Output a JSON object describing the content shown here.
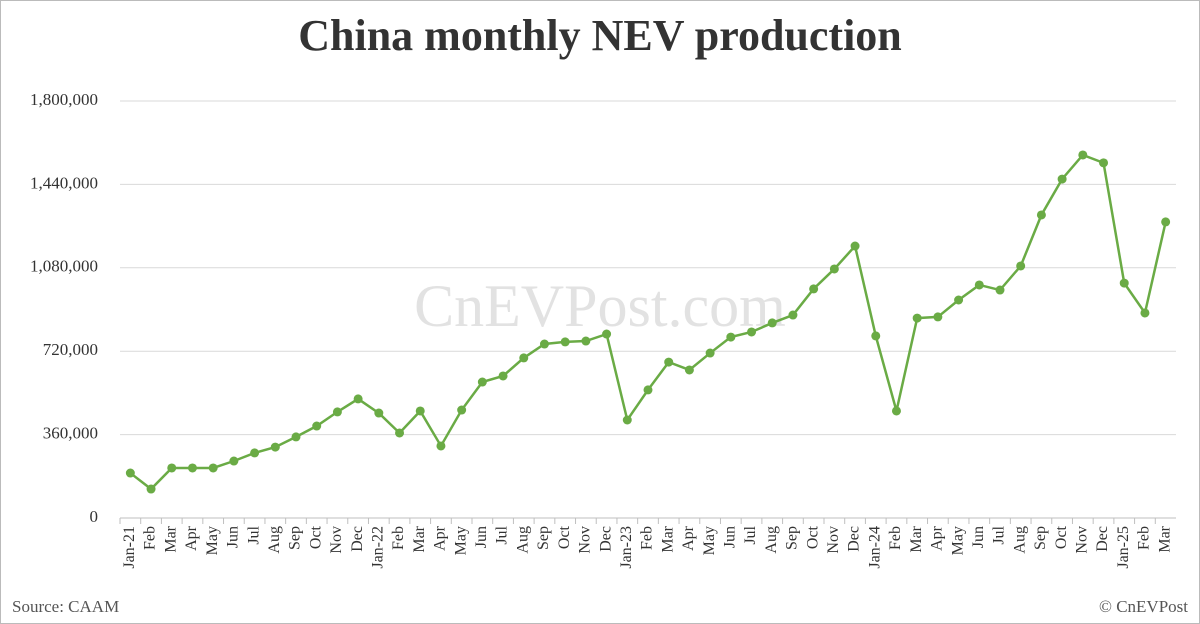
{
  "chart_data": {
    "type": "line",
    "title": "China monthly NEV production",
    "watermark": "CnEVPost.com",
    "source": "Source: CAAM",
    "credit": "© CnEVPost",
    "categories": [
      "Jan-21",
      "Feb",
      "Mar",
      "Apr",
      "May",
      "Jun",
      "Jul",
      "Aug",
      "Sep",
      "Oct",
      "Nov",
      "Dec",
      "Jan-22",
      "Feb",
      "Mar",
      "Apr",
      "May",
      "Jun",
      "Jul",
      "Aug",
      "Sep",
      "Oct",
      "Nov",
      "Dec",
      "Jan-23",
      "Feb",
      "Mar",
      "Apr",
      "May",
      "Jun",
      "Jul",
      "Aug",
      "Sep",
      "Oct",
      "Nov",
      "Dec",
      "Jan-24",
      "Feb",
      "Mar",
      "Apr",
      "May",
      "Jun",
      "Jul",
      "Aug",
      "Sep",
      "Oct",
      "Nov",
      "Dec",
      "Jan-25",
      "Feb",
      "Mar"
    ],
    "series": [
      {
        "name": "NEV production",
        "color": "#6aab45",
        "values": [
          194000,
          125000,
          216000,
          216000,
          216000,
          246000,
          281000,
          306000,
          350000,
          397000,
          458000,
          514000,
          453000,
          367000,
          462000,
          311000,
          466000,
          587000,
          613000,
          691000,
          751000,
          760000,
          764000,
          794000,
          423000,
          553000,
          673000,
          639000,
          712000,
          781000,
          803000,
          842000,
          876000,
          989000,
          1075000,
          1174000,
          786000,
          462000,
          863000,
          868000,
          941000,
          1006000,
          984000,
          1088000,
          1308000,
          1463000,
          1567000,
          1533000,
          1014000,
          885000,
          1278000
        ]
      }
    ],
    "ylim": [
      0,
      1800000
    ],
    "yticks": [
      0,
      {
        "value": 360000,
        "label": "360,000"
      },
      {
        "value": 720000,
        "label": "720,000"
      },
      {
        "value": 1080000,
        "label": "1,080,000"
      },
      {
        "value": 1440000,
        "label": "1,440,000"
      },
      {
        "value": 1800000,
        "label": "1,800,000"
      }
    ],
    "grid": true
  }
}
